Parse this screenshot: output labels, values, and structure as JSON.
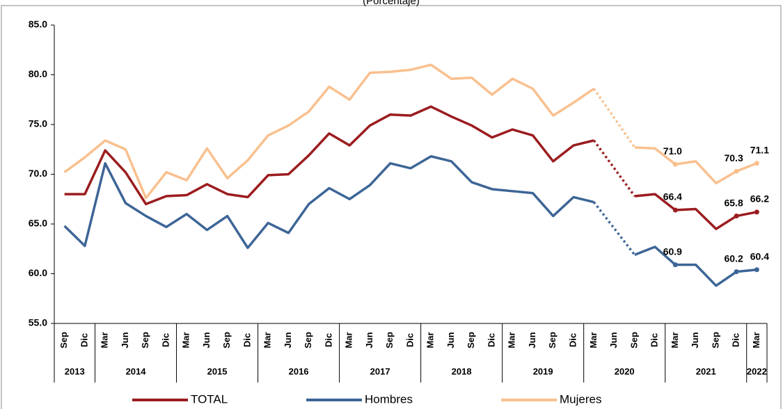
{
  "chart_data": {
    "type": "line",
    "subtitle": "(Porcentaje)",
    "categories": [
      "Sep",
      "Dic",
      "Mar",
      "Jun",
      "Sep",
      "Dic",
      "Mar",
      "Jun",
      "Sep",
      "Dic",
      "Mar",
      "Jun",
      "Sep",
      "Dic",
      "Mar",
      "Jun",
      "Sep",
      "Dic",
      "Mar",
      "Jun",
      "Sep",
      "Dic",
      "Mar",
      "Jun",
      "Sep",
      "Dic",
      "Mar",
      "Jun",
      "Sep",
      "Dic",
      "Mar",
      "Jun",
      "Sep",
      "Dic",
      "Mar"
    ],
    "x_groups": [
      {
        "label": "2013",
        "size": 2
      },
      {
        "label": "2014",
        "size": 4
      },
      {
        "label": "2015",
        "size": 4
      },
      {
        "label": "2016",
        "size": 4
      },
      {
        "label": "2017",
        "size": 4
      },
      {
        "label": "2018",
        "size": 4
      },
      {
        "label": "2019",
        "size": 4
      },
      {
        "label": "2020",
        "size": 4
      },
      {
        "label": "2021",
        "size": 4
      },
      {
        "label": "2022",
        "size": 1
      }
    ],
    "ylim": [
      55,
      85
    ],
    "yticks": [
      {
        "value": 55,
        "label": "55.0"
      },
      {
        "value": 60,
        "label": "60.0"
      },
      {
        "value": 65,
        "label": "65.0"
      },
      {
        "value": 70,
        "label": "70.0"
      },
      {
        "value": 75,
        "label": "75.0"
      },
      {
        "value": 80,
        "label": "80.0"
      },
      {
        "value": 85,
        "label": "85.0"
      }
    ],
    "series": [
      {
        "name": "TOTAL",
        "color": "#9b1c1f",
        "values": [
          68.0,
          68.0,
          72.4,
          70.2,
          67.0,
          67.8,
          67.9,
          69.0,
          68.0,
          67.7,
          69.9,
          70.0,
          71.9,
          74.1,
          72.9,
          74.9,
          76.0,
          75.9,
          76.8,
          75.8,
          74.9,
          73.7,
          74.5,
          73.9,
          71.3,
          72.9,
          73.4,
          null,
          67.8,
          68.0,
          66.4,
          66.5,
          64.5,
          65.8,
          66.2
        ],
        "value_labels": [
          null,
          null,
          null,
          null,
          null,
          null,
          null,
          null,
          null,
          null,
          null,
          null,
          null,
          null,
          null,
          null,
          null,
          null,
          null,
          null,
          null,
          null,
          null,
          null,
          null,
          null,
          null,
          null,
          null,
          null,
          "66.4",
          null,
          null,
          "65.8",
          "66.2"
        ]
      },
      {
        "name": "Hombres",
        "color": "#3d6596",
        "values": [
          64.8,
          62.8,
          71.1,
          67.1,
          65.8,
          64.7,
          66.0,
          64.4,
          65.8,
          62.6,
          65.1,
          64.1,
          67.0,
          68.6,
          67.5,
          68.9,
          71.1,
          70.6,
          71.8,
          71.3,
          69.2,
          68.5,
          68.3,
          68.1,
          65.8,
          67.7,
          67.2,
          null,
          61.9,
          62.7,
          60.9,
          60.9,
          58.8,
          60.2,
          60.4
        ],
        "value_labels": [
          null,
          null,
          null,
          null,
          null,
          null,
          null,
          null,
          null,
          null,
          null,
          null,
          null,
          null,
          null,
          null,
          null,
          null,
          null,
          null,
          null,
          null,
          null,
          null,
          null,
          null,
          null,
          null,
          null,
          null,
          "60.9",
          null,
          null,
          "60.2",
          "60.4"
        ]
      },
      {
        "name": "Mujeres",
        "color": "#f9c08e",
        "values": [
          70.2,
          71.7,
          73.4,
          72.5,
          67.6,
          70.2,
          69.4,
          72.6,
          69.6,
          71.4,
          73.9,
          74.9,
          76.3,
          78.8,
          77.5,
          80.2,
          80.3,
          80.5,
          81.0,
          79.6,
          79.7,
          78.0,
          79.6,
          78.6,
          75.9,
          77.2,
          78.6,
          null,
          72.7,
          72.6,
          71.0,
          71.3,
          69.1,
          70.3,
          71.1
        ],
        "value_labels": [
          null,
          null,
          null,
          null,
          null,
          null,
          null,
          null,
          null,
          null,
          null,
          null,
          null,
          null,
          null,
          null,
          null,
          null,
          null,
          null,
          null,
          null,
          null,
          null,
          null,
          null,
          null,
          null,
          null,
          null,
          "71.0",
          null,
          null,
          "70.3",
          "71.1"
        ]
      }
    ],
    "legend": "bottom"
  }
}
